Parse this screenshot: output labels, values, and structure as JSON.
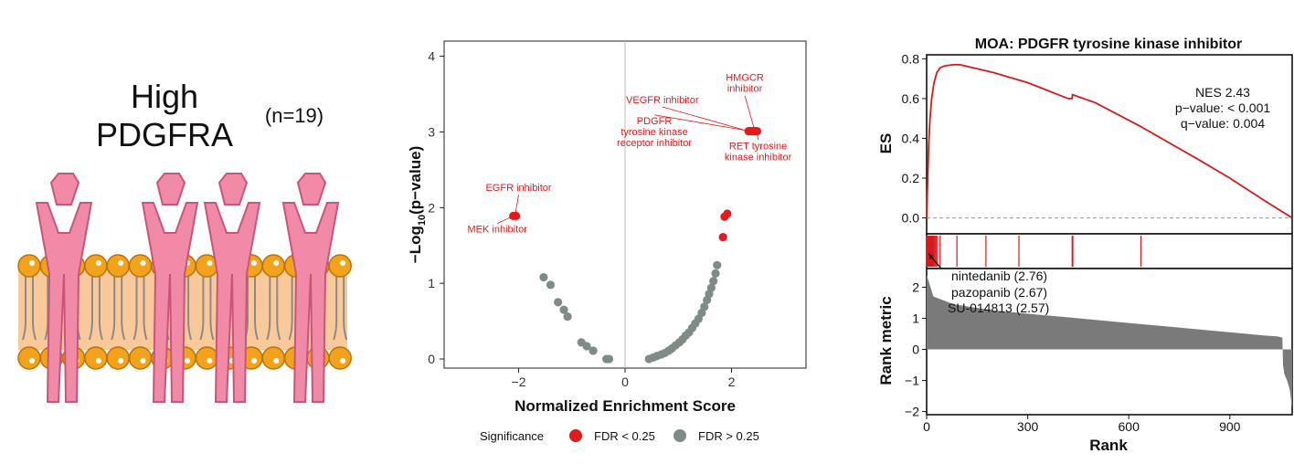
{
  "illustration": {
    "title_line1": "High",
    "title_line2": "PDGFRA",
    "n_label": "(n=19)",
    "colors": {
      "receptor": "#f08aa6",
      "receptor_dark": "#c9557a",
      "membrane": "#f9c99a",
      "head": "#f2a31b",
      "head_edge": "#b8740a"
    }
  },
  "chart_data": [
    {
      "type": "scatter",
      "name": "volcano",
      "xlabel": "Normalized Enrichment Score",
      "ylabel_prefix": "−Log",
      "ylabel_sub": "10",
      "ylabel_suffix": "(p−value)",
      "xlim": [
        -3.4,
        3.4
      ],
      "ylim": [
        -0.12,
        4.2
      ],
      "xticks": [
        -2,
        0,
        2
      ],
      "yticks": [
        0,
        1,
        2,
        3,
        4
      ],
      "legend": {
        "title": "Significance",
        "sig_label": "FDR < 0.25",
        "ns_label": "FDR > 0.25"
      },
      "colors": {
        "sig": "#e31a1c",
        "ns": "#7f8c86",
        "label": "#e31a1c"
      },
      "significant_points": [
        {
          "x": -2.1,
          "y": 1.89
        },
        {
          "x": -2.05,
          "y": 1.89
        },
        {
          "x": 2.32,
          "y": 3.01
        },
        {
          "x": 2.36,
          "y": 3.01
        },
        {
          "x": 2.4,
          "y": 3.01
        },
        {
          "x": 2.44,
          "y": 3.01
        },
        {
          "x": 2.48,
          "y": 3.01
        },
        {
          "x": 1.87,
          "y": 1.88
        },
        {
          "x": 1.92,
          "y": 1.92
        },
        {
          "x": 1.84,
          "y": 1.61
        }
      ],
      "nonsignificant_points": [
        {
          "x": -1.53,
          "y": 1.08
        },
        {
          "x": -1.4,
          "y": 0.98
        },
        {
          "x": -1.26,
          "y": 0.75
        },
        {
          "x": -1.15,
          "y": 0.65
        },
        {
          "x": -1.08,
          "y": 0.56
        },
        {
          "x": -0.82,
          "y": 0.22
        },
        {
          "x": -0.72,
          "y": 0.17
        },
        {
          "x": -0.6,
          "y": 0.11
        },
        {
          "x": -0.35,
          "y": 0.0
        },
        {
          "x": -0.3,
          "y": 0.0
        },
        {
          "x": 0.45,
          "y": 0.0
        },
        {
          "x": 0.53,
          "y": 0.02
        },
        {
          "x": 0.6,
          "y": 0.04
        },
        {
          "x": 0.68,
          "y": 0.06
        },
        {
          "x": 0.75,
          "y": 0.08
        },
        {
          "x": 0.82,
          "y": 0.11
        },
        {
          "x": 0.88,
          "y": 0.14
        },
        {
          "x": 0.95,
          "y": 0.18
        },
        {
          "x": 1.02,
          "y": 0.22
        },
        {
          "x": 1.08,
          "y": 0.26
        },
        {
          "x": 1.14,
          "y": 0.31
        },
        {
          "x": 1.2,
          "y": 0.35
        },
        {
          "x": 1.26,
          "y": 0.41
        },
        {
          "x": 1.32,
          "y": 0.47
        },
        {
          "x": 1.38,
          "y": 0.53
        },
        {
          "x": 1.44,
          "y": 0.61
        },
        {
          "x": 1.49,
          "y": 0.69
        },
        {
          "x": 1.54,
          "y": 0.78
        },
        {
          "x": 1.58,
          "y": 0.86
        },
        {
          "x": 1.62,
          "y": 0.94
        },
        {
          "x": 1.66,
          "y": 1.03
        },
        {
          "x": 1.7,
          "y": 1.13
        },
        {
          "x": 1.73,
          "y": 1.24
        }
      ],
      "annotations": [
        {
          "text_lines": [
            "EGFR inhibitor"
          ],
          "text_x": -2.0,
          "text_y": 2.22,
          "anchor": "middle",
          "point": [
            -2.07,
            1.89
          ]
        },
        {
          "text_lines": [
            "MEK inhibitor"
          ],
          "text_x": -2.4,
          "text_y": 1.67,
          "anchor": "middle",
          "point": [
            -2.1,
            1.89
          ]
        },
        {
          "text_lines": [
            "HMGCR",
            "inhibitor"
          ],
          "text_x": 2.25,
          "text_y": 3.6,
          "anchor": "middle",
          "point": [
            2.44,
            3.01
          ]
        },
        {
          "text_lines": [
            "VEGFR inhibitor"
          ],
          "text_x": 0.7,
          "text_y": 3.38,
          "anchor": "middle",
          "point": [
            2.32,
            3.01
          ]
        },
        {
          "text_lines": [
            "PDGFR",
            "tyrosine kinase",
            "receptor inhibitor"
          ],
          "text_x": 0.55,
          "text_y": 2.96,
          "anchor": "middle",
          "point": [
            2.36,
            3.01
          ]
        },
        {
          "text_lines": [
            "RET tyrosine",
            "kinase inhibitor"
          ],
          "text_x": 2.5,
          "text_y": 2.7,
          "anchor": "middle",
          "point": [
            2.48,
            3.01
          ]
        }
      ]
    },
    {
      "type": "line",
      "name": "gsea",
      "title": "MOA: PDGFR tyrosine kinase inhibitor",
      "es_ylabel": "ES",
      "rank_ylabel": "Rank metric",
      "xlabel": "Rank",
      "xlim": [
        0,
        1085
      ],
      "es_ylim": [
        -0.08,
        0.82
      ],
      "es_yticks": [
        "0.0",
        "0.2",
        "0.4",
        "0.6",
        "0.8"
      ],
      "rank_ylim": [
        -2.1,
        2.6
      ],
      "rank_yticks": [
        "−2",
        "−1",
        "0",
        "1",
        "2"
      ],
      "xticks": [
        "0",
        "300",
        "600",
        "900"
      ],
      "stats": [
        "NES 2.43",
        "p−value: < 0.001",
        "q−value: 0.004"
      ],
      "es_curve": [
        [
          0,
          0.0
        ],
        [
          3,
          0.18
        ],
        [
          6,
          0.36
        ],
        [
          10,
          0.5
        ],
        [
          15,
          0.6
        ],
        [
          22,
          0.68
        ],
        [
          30,
          0.73
        ],
        [
          40,
          0.755
        ],
        [
          55,
          0.765
        ],
        [
          80,
          0.77
        ],
        [
          100,
          0.77
        ],
        [
          200,
          0.73
        ],
        [
          300,
          0.68
        ],
        [
          420,
          0.6
        ],
        [
          432,
          0.6
        ],
        [
          433,
          0.62
        ],
        [
          500,
          0.58
        ],
        [
          635,
          0.46
        ],
        [
          645,
          0.45
        ],
        [
          800,
          0.3
        ],
        [
          900,
          0.2
        ],
        [
          1000,
          0.09
        ],
        [
          1085,
          0.0
        ]
      ],
      "hits": [
        0,
        2,
        4,
        6,
        8,
        10,
        12,
        14,
        16,
        18,
        20,
        22,
        25,
        28,
        32,
        40,
        90,
        176,
        274,
        432,
        434,
        636
      ],
      "rank_metric": [
        [
          0,
          2.4
        ],
        [
          20,
          1.7
        ],
        [
          80,
          1.45
        ],
        [
          200,
          1.25
        ],
        [
          400,
          1.05
        ],
        [
          600,
          0.85
        ],
        [
          800,
          0.65
        ],
        [
          950,
          0.5
        ],
        [
          1000,
          0.45
        ],
        [
          1040,
          0.42
        ],
        [
          1056,
          0.38
        ],
        [
          1058,
          -0.5
        ],
        [
          1062,
          -0.8
        ],
        [
          1070,
          -1.0
        ],
        [
          1078,
          -1.3
        ],
        [
          1085,
          -1.9
        ]
      ],
      "callouts": [
        "nintedanib (2.76)",
        "pazopanib (2.67)",
        "SU-014813 (2.57)"
      ],
      "colors": {
        "curve": "#d7191c",
        "hit": "#d7191c",
        "rank_fill": "#7a7a7a",
        "zero_line": "#999999"
      }
    }
  ]
}
